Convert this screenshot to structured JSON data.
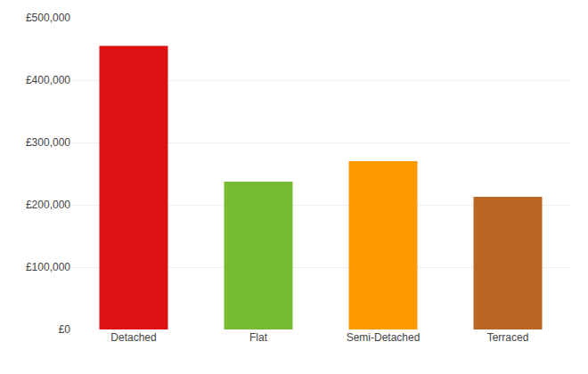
{
  "chart_data": {
    "type": "bar",
    "categories": [
      "Detached",
      "Flat",
      "Semi-Detached",
      "Terraced"
    ],
    "values": [
      455000,
      237000,
      270000,
      213000
    ],
    "colors": [
      "#dd1111",
      "#77bb33",
      "#ff9900",
      "#bb6622"
    ],
    "ylim": [
      0,
      500000
    ],
    "yticks": [
      {
        "value": 0,
        "label": "£0"
      },
      {
        "value": 100000,
        "label": "£100,000"
      },
      {
        "value": 200000,
        "label": "£200,000"
      },
      {
        "value": 300000,
        "label": "£300,000"
      },
      {
        "value": 400000,
        "label": "£400,000"
      },
      {
        "value": 500000,
        "label": "£500,000"
      }
    ],
    "grid": true
  }
}
